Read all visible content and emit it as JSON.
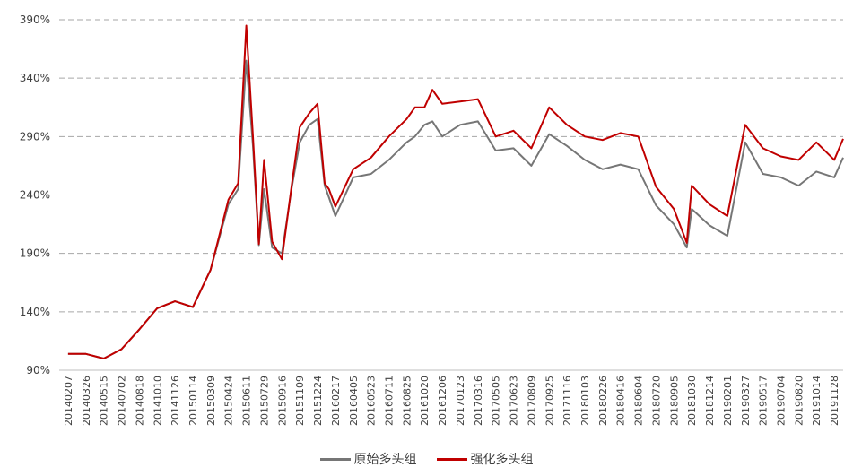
{
  "chart_data": {
    "type": "line",
    "title": "",
    "xlabel": "",
    "ylabel": "",
    "y_unit": "%",
    "ylim": [
      90,
      390
    ],
    "y_ticks": [
      90,
      140,
      190,
      240,
      290,
      340,
      390
    ],
    "y_tick_labels": [
      "90%",
      "140%",
      "190%",
      "240%",
      "290%",
      "340%",
      "390%"
    ],
    "grid": "horizontal-dashed",
    "legend_position": "bottom",
    "x_tick_labels": [
      "20140207",
      "20140326",
      "20140515",
      "20140702",
      "20140818",
      "20141010",
      "20141126",
      "20150114",
      "20150309",
      "20150424",
      "20150611",
      "20150729",
      "20150916",
      "20151109",
      "20151224",
      "20160217",
      "20160405",
      "20160523",
      "20160711",
      "20160825",
      "20161020",
      "20161206",
      "20170123",
      "20170316",
      "20170505",
      "20170623",
      "20170809",
      "20170925",
      "20171116",
      "20180103",
      "20180226",
      "20180416",
      "20180604",
      "20180720",
      "20180905",
      "20181030",
      "20181214",
      "20190201",
      "20190327",
      "20190517",
      "20190704",
      "20190820",
      "20191014",
      "20191128"
    ],
    "x": [
      "20140207",
      "20140326",
      "20140515",
      "20140702",
      "20140818",
      "20141010",
      "20141126",
      "20150114",
      "20150309",
      "20150424",
      "20150520",
      "20150611",
      "20150629",
      "20150715",
      "20150729",
      "20150820",
      "20150916",
      "20151015",
      "20151109",
      "20151203",
      "20151224",
      "20160115",
      "20160128",
      "20160217",
      "20160405",
      "20160523",
      "20160711",
      "20160825",
      "20160920",
      "20161020",
      "20161110",
      "20161206",
      "20170123",
      "20170316",
      "20170505",
      "20170623",
      "20170809",
      "20170925",
      "20171116",
      "20180103",
      "20180226",
      "20180416",
      "20180604",
      "20180720",
      "20180905",
      "20181015",
      "20181030",
      "20181214",
      "20190201",
      "20190327",
      "20190517",
      "20190704",
      "20190820",
      "20191014",
      "20191128",
      "20191231"
    ],
    "series": [
      {
        "name": "原始多头组",
        "color": "#767676",
        "values": [
          104,
          104,
          100,
          108,
          125,
          143,
          149,
          144,
          176,
          232,
          245,
          355,
          282,
          197,
          245,
          195,
          190,
          245,
          285,
          300,
          305,
          248,
          238,
          222,
          255,
          258,
          270,
          285,
          290,
          300,
          303,
          290,
          300,
          303,
          278,
          280,
          265,
          292,
          282,
          270,
          262,
          266,
          262,
          231,
          215,
          195,
          228,
          214,
          205,
          285,
          258,
          255,
          248,
          260,
          255,
          272
        ]
      },
      {
        "name": "强化多头组",
        "color": "#C00000",
        "values": [
          104,
          104,
          100,
          108,
          125,
          143,
          149,
          144,
          176,
          236,
          250,
          385,
          290,
          198,
          270,
          200,
          185,
          247,
          298,
          310,
          318,
          250,
          245,
          230,
          262,
          272,
          290,
          305,
          315,
          315,
          330,
          318,
          320,
          322,
          290,
          295,
          280,
          315,
          300,
          290,
          287,
          293,
          290,
          247,
          228,
          199,
          248,
          232,
          222,
          300,
          280,
          273,
          270,
          285,
          270,
          288
        ]
      }
    ]
  }
}
